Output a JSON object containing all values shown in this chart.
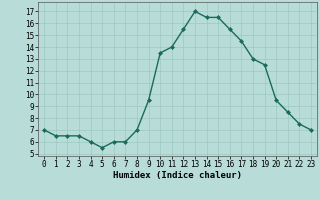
{
  "x": [
    0,
    1,
    2,
    3,
    4,
    5,
    6,
    7,
    8,
    9,
    10,
    11,
    12,
    13,
    14,
    15,
    16,
    17,
    18,
    19,
    20,
    21,
    22,
    23
  ],
  "y": [
    7.0,
    6.5,
    6.5,
    6.5,
    6.0,
    5.5,
    6.0,
    6.0,
    7.0,
    9.5,
    13.5,
    14.0,
    15.5,
    17.0,
    16.5,
    16.5,
    15.5,
    14.5,
    13.0,
    12.5,
    9.5,
    8.5,
    7.5,
    7.0
  ],
  "line_color": "#1a6b5a",
  "marker": "D",
  "marker_size": 2.0,
  "bg_color": "#b8ddd8",
  "grid_color": "#9cc8c0",
  "xlabel": "Humidex (Indice chaleur)",
  "xlim": [
    -0.5,
    23.5
  ],
  "ylim": [
    4.8,
    17.8
  ],
  "yticks": [
    5,
    6,
    7,
    8,
    9,
    10,
    11,
    12,
    13,
    14,
    15,
    16,
    17
  ],
  "xticks": [
    0,
    1,
    2,
    3,
    4,
    5,
    6,
    7,
    8,
    9,
    10,
    11,
    12,
    13,
    14,
    15,
    16,
    17,
    18,
    19,
    20,
    21,
    22,
    23
  ],
  "tick_fontsize": 5.5,
  "xlabel_fontsize": 6.5,
  "line_width": 1.0
}
